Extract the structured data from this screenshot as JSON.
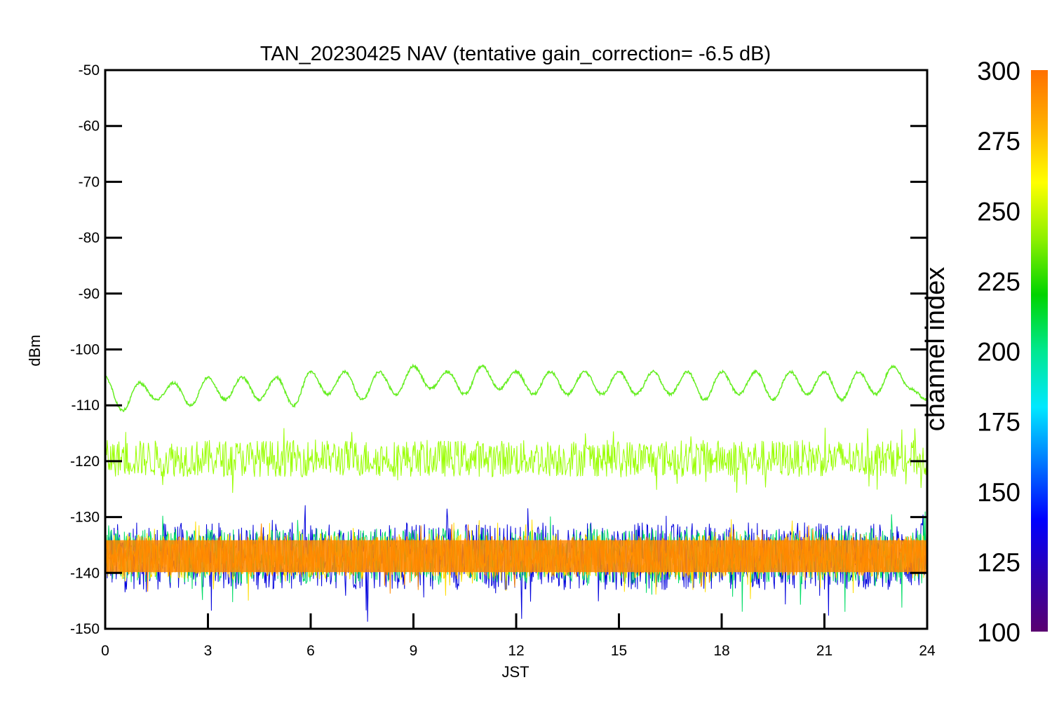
{
  "chart_data": {
    "type": "line",
    "title": "TAN_20230425 NAV (tentative gain_correction= -6.5 dB)",
    "xlabel": "JST",
    "ylabel": "dBm",
    "xlim": [
      0,
      24
    ],
    "ylim": [
      -150,
      -50
    ],
    "xticks": [
      "0",
      "3",
      "6",
      "9",
      "12",
      "15",
      "18",
      "21",
      "24"
    ],
    "yticks": [
      "-50",
      "-60",
      "-70",
      "-80",
      "-90",
      "-100",
      "-110",
      "-120",
      "-130",
      "-140",
      "-150"
    ],
    "grid": false,
    "colorbar": {
      "label": "channel index",
      "range": [
        100,
        300
      ],
      "ticks": [
        "300",
        "275",
        "250",
        "225",
        "200",
        "175",
        "150",
        "125",
        "100"
      ],
      "colormap": [
        "#5a0070",
        "#2f00b0",
        "#0000ff",
        "#0077ff",
        "#00e8ff",
        "#00e890",
        "#00d400",
        "#8ff000",
        "#ffff00",
        "#ffb000",
        "#ff7000"
      ]
    },
    "series": [
      {
        "channel_index": 247,
        "color": "#66ee22",
        "x": [
          0,
          0.5,
          1,
          1.5,
          2,
          2.5,
          3,
          3.5,
          4,
          4.5,
          5,
          5.5,
          6,
          6.5,
          7,
          7.5,
          8,
          8.5,
          9,
          9.5,
          10,
          10.5,
          11,
          11.5,
          12,
          12.5,
          13,
          13.5,
          14,
          14.5,
          15,
          15.5,
          16,
          16.5,
          17,
          17.5,
          18,
          18.5,
          19,
          19.5,
          20,
          20.5,
          21,
          21.5,
          22,
          22.5,
          23,
          23.5,
          24
        ],
        "y": [
          -105,
          -111,
          -106,
          -109,
          -106,
          -110,
          -105,
          -109,
          -105,
          -109,
          -105,
          -110,
          -104,
          -108,
          -104,
          -109,
          -104,
          -108,
          -103,
          -107,
          -104,
          -108,
          -103,
          -107,
          -104,
          -108,
          -104,
          -108,
          -104,
          -108,
          -104,
          -108,
          -104,
          -108,
          -104,
          -109,
          -104,
          -108,
          -104,
          -109,
          -104,
          -108,
          -104,
          -109,
          -104,
          -108,
          -103,
          -107,
          -109
        ]
      },
      {
        "channel_index": 263,
        "color": "#99ff00",
        "x": [
          0,
          24
        ],
        "y_mean": [
          -119.5,
          -119.5
        ],
        "y_range": [
          -126,
          -114
        ]
      },
      {
        "channel_index": 290,
        "color": "#ff8800",
        "x": [
          0,
          24
        ],
        "y_mean": [
          -137,
          -137
        ],
        "y_range": [
          -144,
          -131
        ]
      },
      {
        "channel_index": 275,
        "color": "#ffdd00",
        "x": [
          0,
          24
        ],
        "y_mean": [
          -137,
          -137
        ],
        "y_range": [
          -145,
          -130
        ]
      },
      {
        "channel_index": 200,
        "color": "#00dd66",
        "x": [
          0,
          24
        ],
        "y_mean": [
          -137,
          -137
        ],
        "y_range": [
          -147,
          -129
        ]
      },
      {
        "channel_index": 130,
        "color": "#0000dd",
        "x": [
          0,
          24
        ],
        "y_mean": [
          -137,
          -137
        ],
        "y_range": [
          -149,
          -127
        ]
      }
    ]
  }
}
